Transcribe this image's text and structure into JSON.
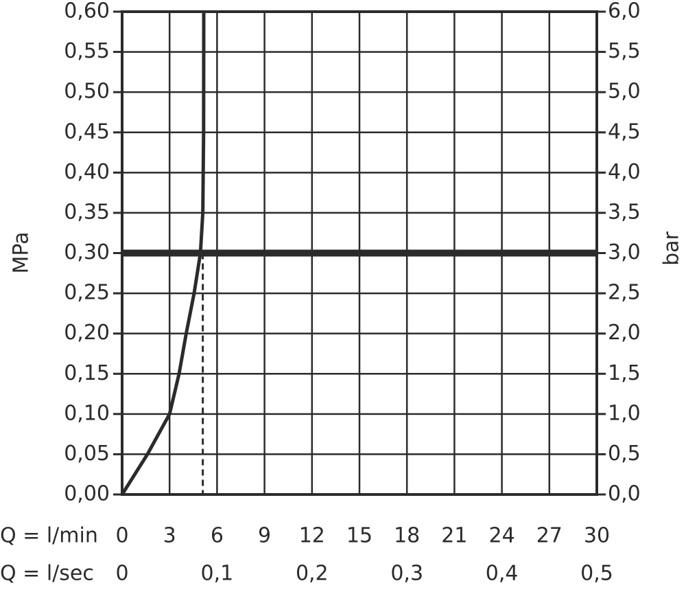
{
  "chart_data": {
    "type": "line",
    "xlabel": "Q = l/min",
    "x2label": "Q = l/sec",
    "ylabel": "MPa",
    "y2label": "bar",
    "xlim": [
      0,
      30
    ],
    "xticks": [
      0,
      3,
      6,
      9,
      12,
      15,
      18,
      21,
      24,
      27,
      30
    ],
    "x2lim": [
      0,
      0.5
    ],
    "x2ticks": [
      0,
      {
        "value": 0.1,
        "label": "0,1"
      },
      {
        "value": 0.2,
        "label": "0,2"
      },
      {
        "value": 0.3,
        "label": "0,3"
      },
      {
        "value": 0.4,
        "label": "0,4"
      },
      {
        "value": 0.5,
        "label": "0,5"
      }
    ],
    "ylim": [
      0,
      0.6
    ],
    "yticks": [
      {
        "value": 0,
        "label": "0,00"
      },
      {
        "value": 0.05,
        "label": "0,05"
      },
      {
        "value": 0.1,
        "label": "0,10"
      },
      {
        "value": 0.15,
        "label": "0,15"
      },
      {
        "value": 0.2,
        "label": "0,20"
      },
      {
        "value": 0.25,
        "label": "0,25"
      },
      {
        "value": 0.3,
        "label": "0,30"
      },
      {
        "value": 0.35,
        "label": "0,35"
      },
      {
        "value": 0.4,
        "label": "0,40"
      },
      {
        "value": 0.45,
        "label": "0,45"
      },
      {
        "value": 0.5,
        "label": "0,50"
      },
      {
        "value": 0.55,
        "label": "0,55"
      },
      {
        "value": 0.6,
        "label": "0,60"
      }
    ],
    "y2lim": [
      0,
      6
    ],
    "y2ticks": [
      {
        "value": 0,
        "label": "0,0"
      },
      {
        "value": 0.5,
        "label": "0,5"
      },
      {
        "value": 1,
        "label": "1,0"
      },
      {
        "value": 1.5,
        "label": "1,5"
      },
      {
        "value": 2,
        "label": "2,0"
      },
      {
        "value": 2.5,
        "label": "2,5"
      },
      {
        "value": 3,
        "label": "3,0"
      },
      {
        "value": 3.5,
        "label": "3,5"
      },
      {
        "value": 4,
        "label": "4,0"
      },
      {
        "value": 4.5,
        "label": "4,5"
      },
      {
        "value": 5,
        "label": "5,0"
      },
      {
        "value": 5.5,
        "label": "5,5"
      },
      {
        "value": 6,
        "label": "6,0"
      }
    ],
    "grid": true,
    "reference_y": 0.3,
    "reference_x": 5.1,
    "x": [
      0,
      1.6,
      3,
      3.6,
      4.05,
      4.55,
      4.95,
      5.1,
      5.15,
      5.16
    ],
    "series": [
      {
        "color": "#2b2b2b",
        "values": [
          0,
          0.05,
          0.1,
          0.15,
          0.2,
          0.25,
          0.3,
          0.35,
          0.45,
          0.6
        ]
      }
    ]
  }
}
